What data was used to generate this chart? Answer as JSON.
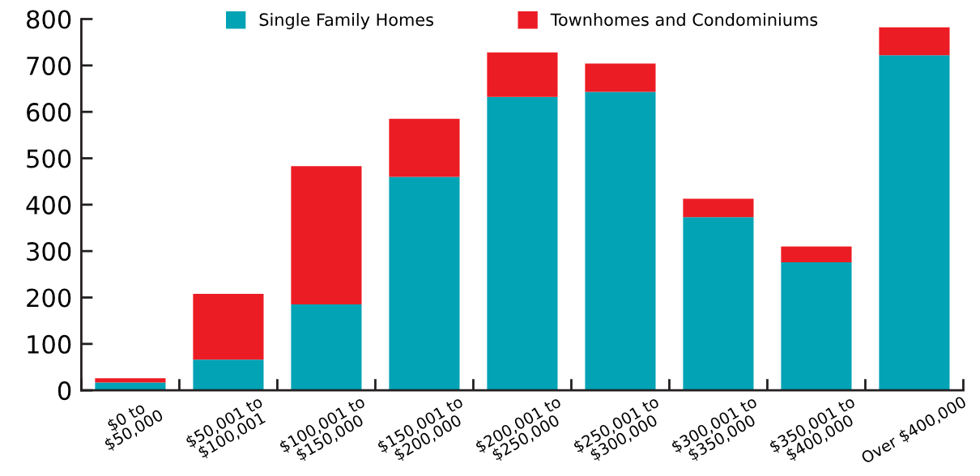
{
  "chart_data": {
    "type": "bar",
    "stacked": true,
    "categories": [
      "$0 to\n$50,000",
      "$50,001 to\n$100,001",
      "$100,001 to\n$150,000",
      "$150,001 to\n$200,000",
      "$200,001 to\n$250,000",
      "$250,001 to\n$300,000",
      "$300,001 to\n$350,000",
      "$350,001 to\n$400,000",
      "Over $400,000"
    ],
    "series": [
      {
        "name": "Single Family Homes",
        "color": "#02a3b5",
        "values": [
          17,
          66,
          185,
          460,
          632,
          643,
          373,
          276,
          722
        ]
      },
      {
        "name": "Townhomes and Condominiums",
        "color": "#ec1c24",
        "values": [
          9,
          142,
          298,
          125,
          96,
          61,
          40,
          34,
          60
        ]
      }
    ],
    "ylim": [
      0,
      800
    ],
    "yticks": [
      0,
      100,
      200,
      300,
      400,
      500,
      600,
      700,
      800
    ],
    "grid": false,
    "legend": "top"
  }
}
